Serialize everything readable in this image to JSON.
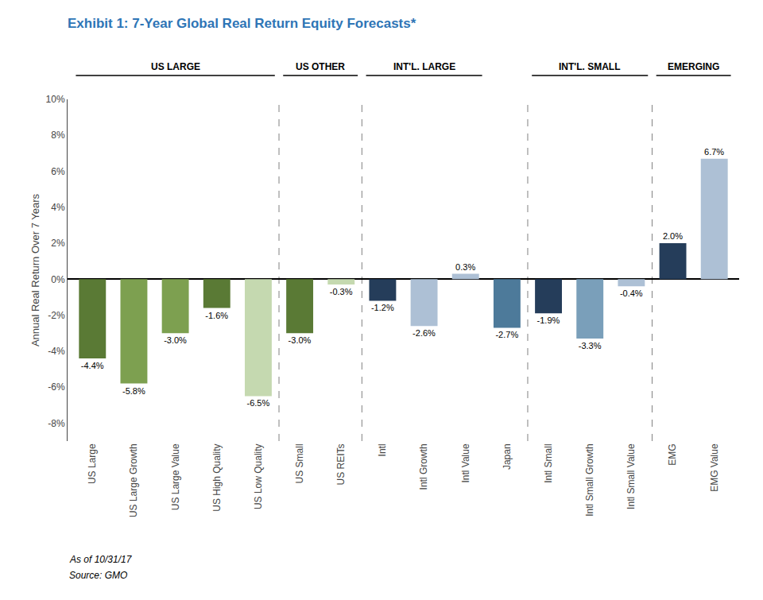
{
  "chart_data": {
    "type": "bar",
    "title": "Exhibit 1: 7-Year Global Real Return Equity Forecasts*",
    "ylabel": "Annual Real Return Over 7 Years",
    "categories": [
      "US Large",
      "US Large Growth",
      "US Large Value",
      "US High Quality",
      "US Low Quality",
      "US Small",
      "US REITs",
      "Intl",
      "Intl Growth",
      "Intl Value",
      "Japan",
      "Intl Small",
      "Intl Small Growth",
      "Intl Small Value",
      "EMG",
      "EMG Value"
    ],
    "values": [
      -4.4,
      -5.8,
      -3.0,
      -1.6,
      -6.5,
      -3.0,
      -0.3,
      -1.2,
      -2.6,
      0.3,
      -2.7,
      -1.9,
      -3.3,
      -0.4,
      2.0,
      6.7
    ],
    "value_labels": [
      "-4.4%",
      "-5.8%",
      "-3.0%",
      "-1.6%",
      "-6.5%",
      "-3.0%",
      "-0.3%",
      "-1.2%",
      "-2.6%",
      "0.3%",
      "-2.7%",
      "-1.9%",
      "-3.3%",
      "-0.4%",
      "2.0%",
      "6.7%"
    ],
    "colors": [
      "#5a7a35",
      "#7da050",
      "#7da050",
      "#5a7a35",
      "#c5d9b0",
      "#5a7a35",
      "#c5d9b0",
      "#253d5a",
      "#adc0d5",
      "#adc0d5",
      "#4d7a9a",
      "#253d5a",
      "#7a9fba",
      "#adc0d5",
      "#253d5a",
      "#adc0d5"
    ],
    "data_labels": true,
    "grid": false,
    "ylim": [
      -9,
      10
    ],
    "yticks": [
      {
        "value": -8,
        "label": "-8%"
      },
      {
        "value": -6,
        "label": "-6%"
      },
      {
        "value": -4,
        "label": "-4%"
      },
      {
        "value": -2,
        "label": "-2%"
      },
      {
        "value": 0,
        "label": "0%"
      },
      {
        "value": 2,
        "label": "2%"
      },
      {
        "value": 4,
        "label": "4%"
      },
      {
        "value": 6,
        "label": "6%"
      },
      {
        "value": 8,
        "label": "8%"
      },
      {
        "value": 10,
        "label": "10%"
      }
    ],
    "groups": [
      {
        "label": "US LARGE",
        "categories": [
          "US Large",
          "US Large Growth",
          "US Large Value",
          "US High Quality",
          "US Low Quality"
        ]
      },
      {
        "label": "US OTHER",
        "categories": [
          "US Small",
          "US REITs"
        ]
      },
      {
        "label": "INT'L. LARGE",
        "categories": [
          "Intl",
          "Intl Growth",
          "Intl Value"
        ]
      },
      {
        "label": "INT'L. SMALL",
        "categories": [
          "Intl Small",
          "Intl Small Growth",
          "Intl Small Value"
        ]
      },
      {
        "label": "EMERGING",
        "categories": [
          "EMG",
          "EMG Value"
        ]
      }
    ],
    "separators_after": [
      "US Low Quality",
      "US REITs",
      "Japan",
      "Intl Small Value"
    ],
    "annotations": [
      "As of 10/31/17",
      "Source: GMO"
    ]
  }
}
